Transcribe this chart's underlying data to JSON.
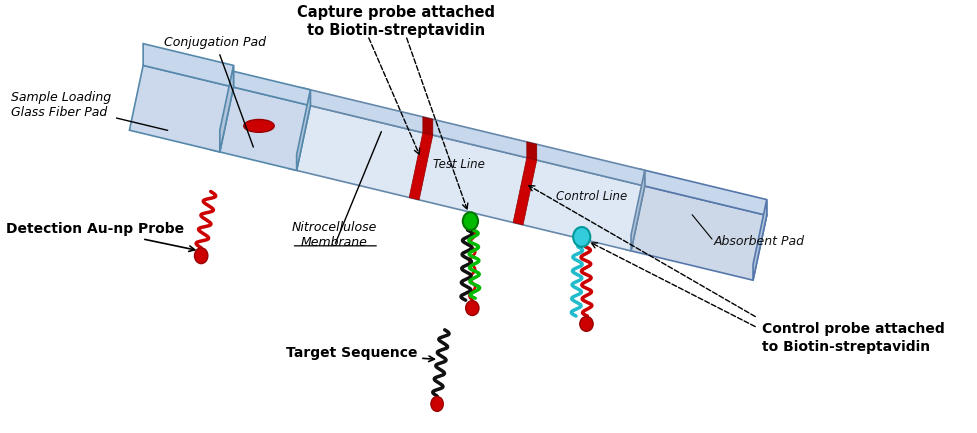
{
  "bg_color": "#ffffff",
  "label_detection": "Detection Au-np Probe",
  "label_sample": "Sample Loading\nGlass Fiber Pad",
  "label_conjugation": "Conjugation Pad",
  "label_nitro": "Nitrocellulose\nMembrane",
  "label_test": "Test Line",
  "label_control": "Control Line",
  "label_absorbent": "Absorbent Pad",
  "label_target": "Target Sequence",
  "label_capture": "Capture probe attached\nto Biotin-streptavidin",
  "label_control_probe": "Control probe attached\nto Biotin-streptavidin",
  "red_color": "#cc0000",
  "dark_red": "#990000",
  "green_color": "#00bb00",
  "cyan_color": "#00cccc",
  "pad_face_light": "#dce8f4",
  "pad_face_mid": "#c8d8ec",
  "pad_face_dark": "#b0c4dc",
  "pad_edge": "#7799bb",
  "strip_face": "#e0eaf6",
  "red_line_color": "#cc0000",
  "text_color": "#000000"
}
